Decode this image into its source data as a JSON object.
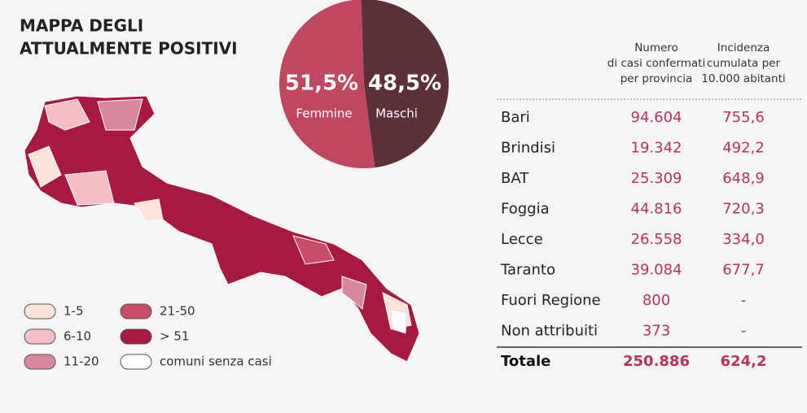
{
  "chart_data": {
    "type": "pie",
    "categories": [
      "Femmine",
      "Maschi"
    ],
    "values": [
      51.5,
      48.5
    ],
    "value_labels": [
      "51,5%",
      "48,5%"
    ],
    "colors": [
      "#c0475f",
      "#5c3238"
    ]
  },
  "map": {
    "title": [
      "MAPPA DEGLI",
      "ATTUALMENTE POSITIVI"
    ],
    "legend": [
      {
        "label": "1-5",
        "color": "#fde3d8"
      },
      {
        "label": "6-10",
        "color": "#f3bfc4"
      },
      {
        "label": "11-20",
        "color": "#d8879c"
      },
      {
        "label": "21-50",
        "color": "#c84d6a"
      },
      {
        "label": "> 51",
        "color": "#a8193f"
      },
      {
        "label": "comuni senza casi",
        "color": "#ffffff"
      }
    ]
  },
  "table": {
    "headers": [
      [
        "Numero",
        "di casi confermati",
        "per provincia"
      ],
      [
        "Incidenza",
        "cumulata per",
        "10.000 abitanti"
      ]
    ],
    "rows": [
      [
        "Bari",
        "94.604",
        "755,6"
      ],
      [
        "Brindisi",
        "19.342",
        "492,2"
      ],
      [
        "BAT",
        "25.309",
        "648,9"
      ],
      [
        "Foggia",
        "44.816",
        "720,3"
      ],
      [
        "Lecce",
        "26.558",
        "334,0"
      ],
      [
        "Taranto",
        "39.084",
        "677,7"
      ],
      [
        "Fuori Regione",
        "800",
        "-"
      ],
      [
        "Non attribuiti",
        "373",
        "-"
      ]
    ],
    "total": [
      "Totale",
      "250.886",
      "624,2"
    ]
  }
}
